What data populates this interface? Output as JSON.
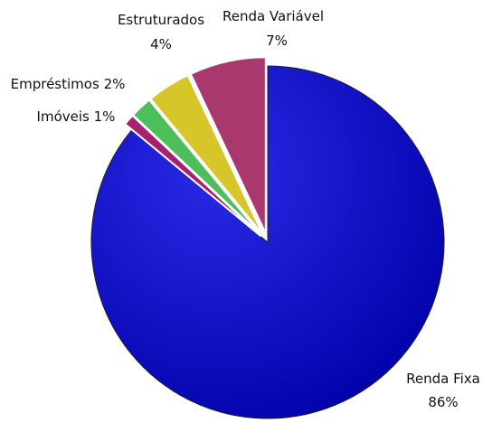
{
  "chart_data": {
    "type": "pie",
    "categories": [
      "Renda Fixa",
      "Imóveis",
      "Empréstimos",
      "Estruturados",
      "Renda Variável"
    ],
    "values": [
      86,
      1,
      2,
      4,
      7
    ],
    "value_labels": [
      "86%",
      "1%",
      "2%",
      "4%",
      "7%"
    ],
    "colors": [
      "#0a0ac8",
      "#a8206e",
      "#4cbf5a",
      "#d6c62a",
      "#a8386e"
    ]
  }
}
